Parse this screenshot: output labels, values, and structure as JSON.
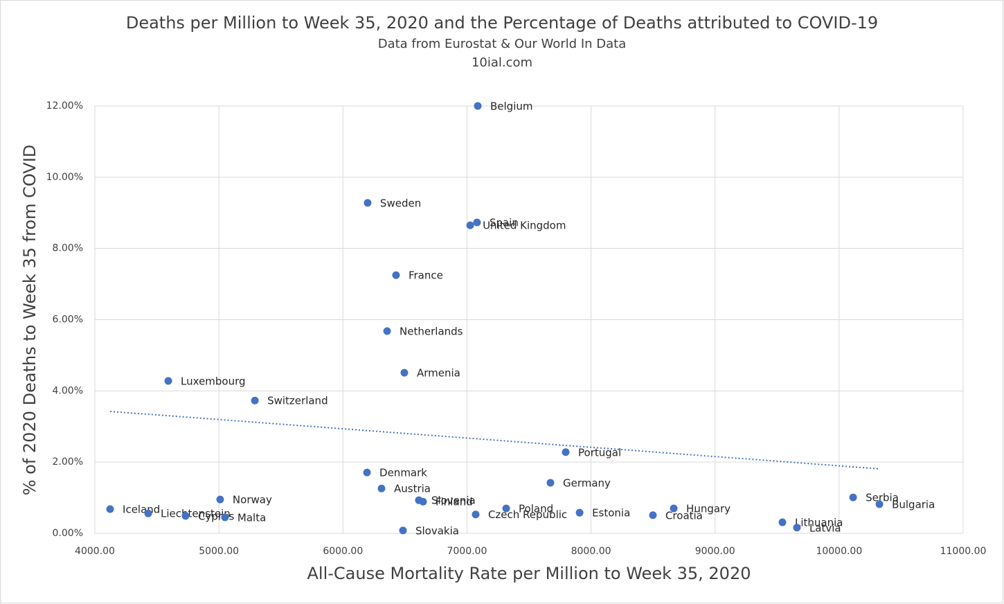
{
  "chart_data": {
    "type": "scatter",
    "title": "Deaths per Million to Week 35, 2020 and the Percentage of Deaths attributed to COVID-19",
    "subtitle": "Data from Eurostat & Our World In Data",
    "source": "10ial.com",
    "x_label": "All-Cause Mortality Rate per Million to Week 35, 2020",
    "y_label": "% of 2020 Deaths to Week 35 from COVID",
    "color": "#4472c4",
    "grid": true,
    "trendline": "linear",
    "trendline_color": "#4472c4",
    "labels": [
      "Belgium",
      "Sweden",
      "Spain",
      "United Kingdom",
      "France",
      "Netherlands",
      "Armenia",
      "Luxembourg",
      "Switzerland",
      "Portugal",
      "Denmark",
      "Germany",
      "Austria",
      "Norway",
      "Slovenia",
      "Finland",
      "Poland",
      "Serbia",
      "Bulgaria",
      "Iceland",
      "Hungary",
      "Estonia",
      "Liechtenstein",
      "Czech Republic",
      "Croatia",
      "Cyprus",
      "Malta",
      "Lithuania",
      "Latvia",
      "Slovakia"
    ],
    "x": [
      7087,
      6199,
      7081,
      7026,
      6428,
      6356,
      6495,
      4592,
      5290,
      7796,
      6194,
      7673,
      6311,
      5010,
      6612,
      6646,
      7316,
      10113,
      10325,
      4123,
      8667,
      7908,
      4430,
      7070,
      8499,
      4731,
      5049,
      9543,
      9660,
      6484
    ],
    "values": [
      12.0,
      9.28,
      8.73,
      8.65,
      7.25,
      5.68,
      4.51,
      4.28,
      3.73,
      2.28,
      1.71,
      1.42,
      1.26,
      0.95,
      0.93,
      0.89,
      0.7,
      1.01,
      0.82,
      0.68,
      0.7,
      0.58,
      0.56,
      0.53,
      0.51,
      0.49,
      0.45,
      0.31,
      0.16,
      0.08
    ],
    "xlim": [
      4000,
      11000
    ],
    "xticks": [
      {
        "value": 4000,
        "label": "4000.00"
      },
      {
        "value": 5000,
        "label": "5000.00"
      },
      {
        "value": 6000,
        "label": "6000.00"
      },
      {
        "value": 7000,
        "label": "7000.00"
      },
      {
        "value": 8000,
        "label": "8000.00"
      },
      {
        "value": 9000,
        "label": "9000.00"
      },
      {
        "value": 10000,
        "label": "10000.00"
      },
      {
        "value": 11000,
        "label": "11000.00"
      }
    ],
    "ylim": [
      0,
      12
    ],
    "yticks": [
      {
        "value": 0,
        "label": "0.00%"
      },
      {
        "value": 2,
        "label": "2.00%"
      },
      {
        "value": 4,
        "label": "4.00%"
      },
      {
        "value": 6,
        "label": "6.00%"
      },
      {
        "value": 8,
        "label": "8.00%"
      },
      {
        "value": 10,
        "label": "10.00%"
      },
      {
        "value": 12,
        "label": "12.00%"
      }
    ]
  }
}
